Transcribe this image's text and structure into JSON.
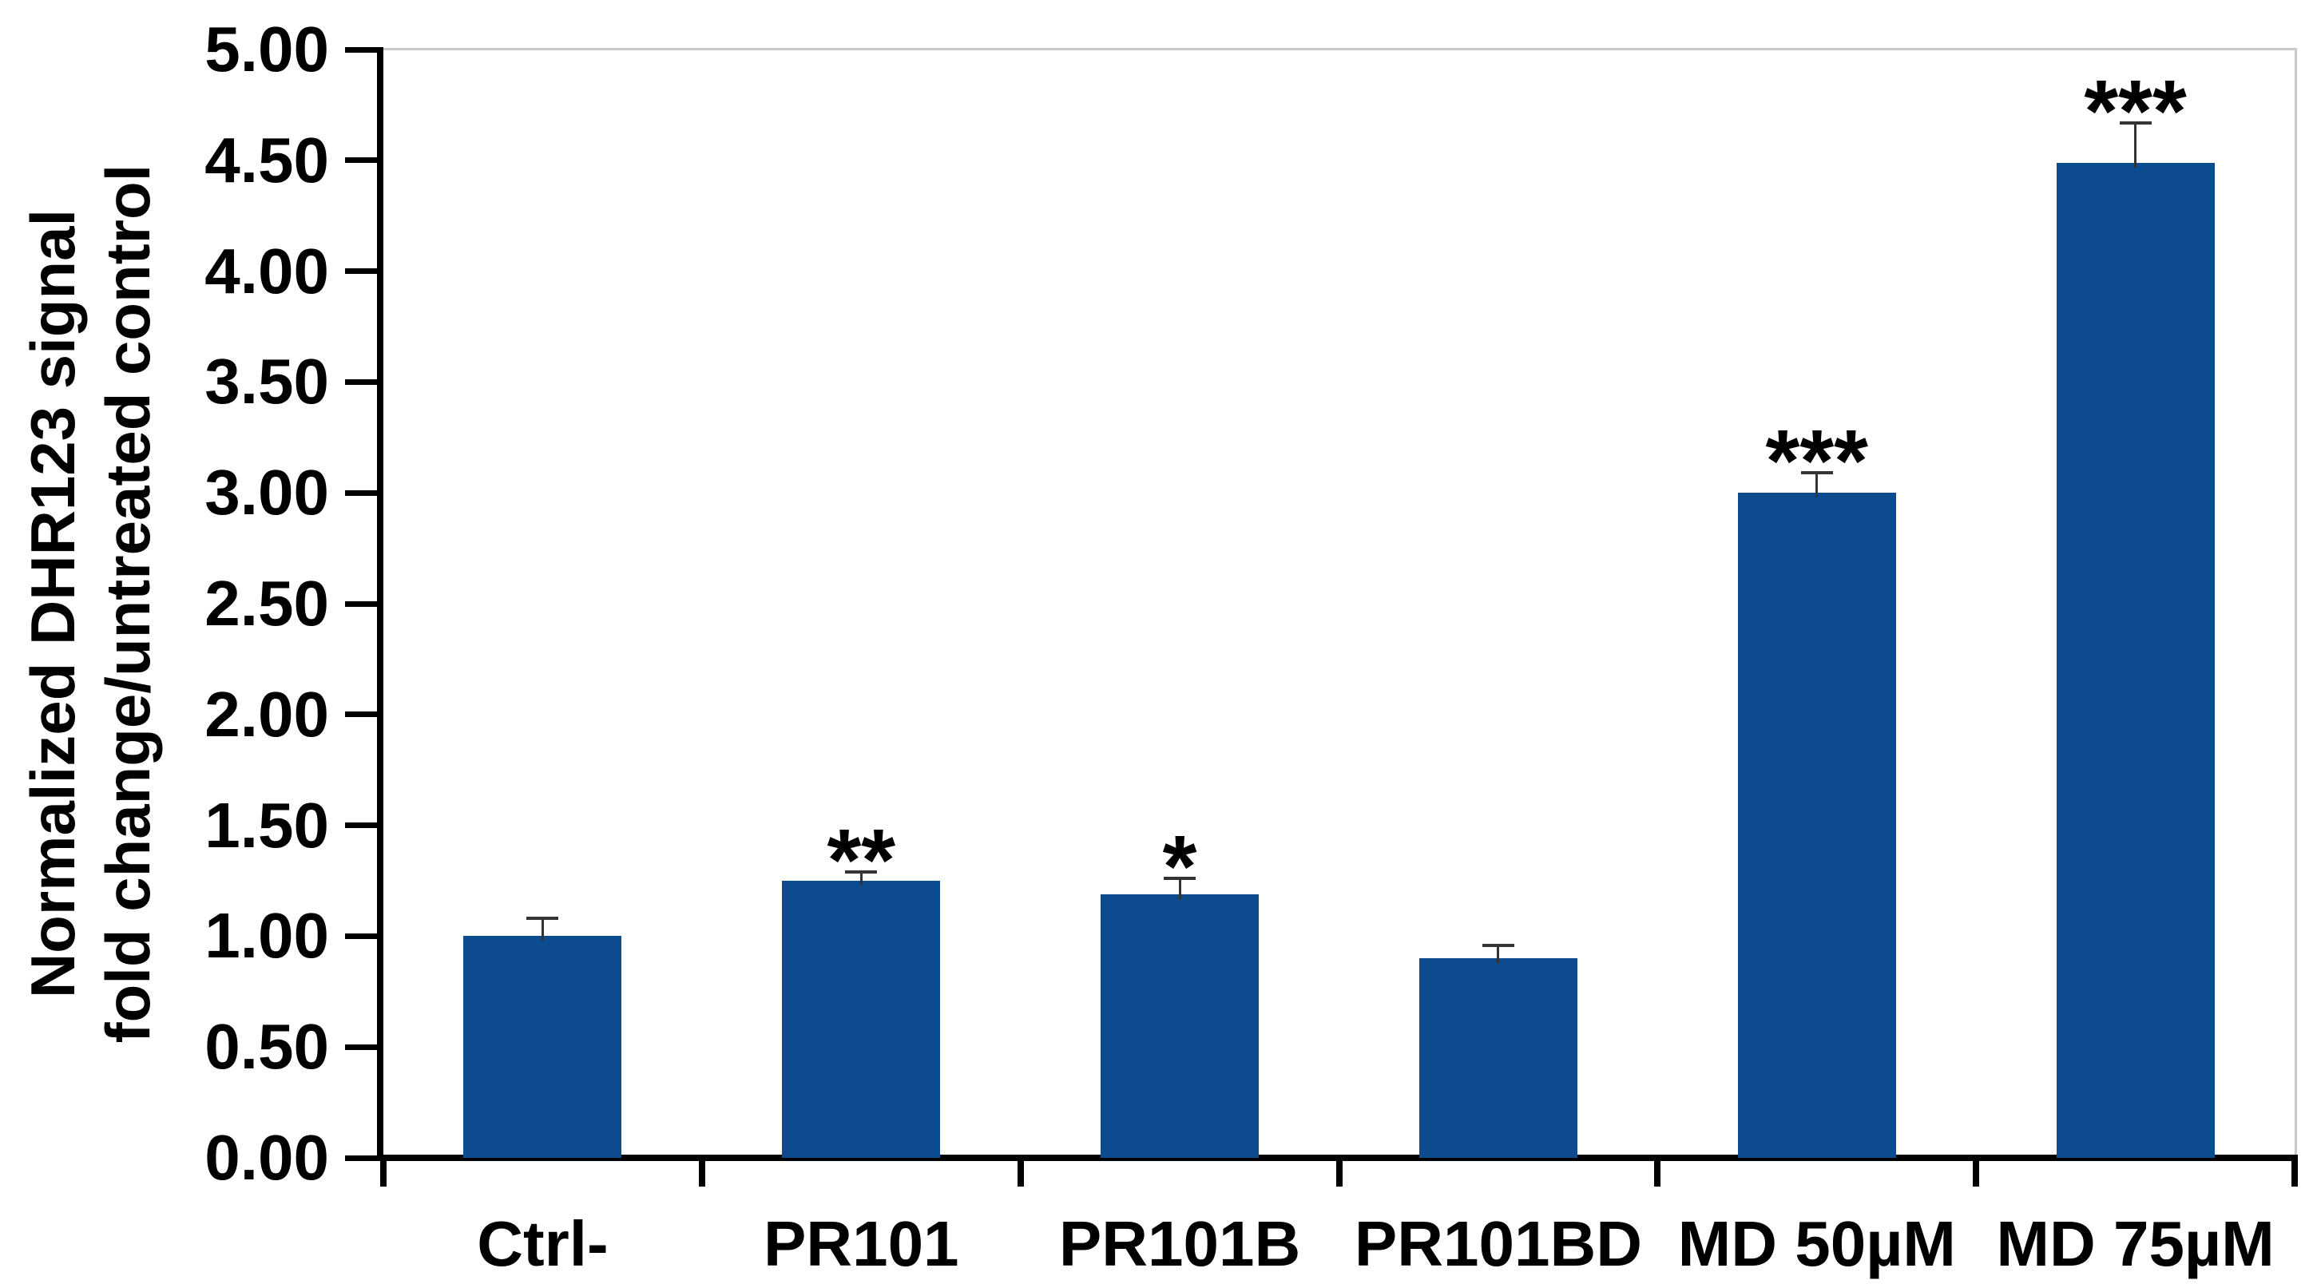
{
  "chart_data": {
    "type": "bar",
    "title": "",
    "categories": [
      "Ctrl-",
      "PR101",
      "PR101B",
      "PR101BD",
      "MD 50µM",
      "MD 75µM"
    ],
    "values": [
      1.0,
      1.25,
      1.19,
      0.9,
      3.0,
      4.49
    ],
    "error_upper": [
      0.08,
      0.04,
      0.07,
      0.06,
      0.09,
      0.18
    ],
    "significance": [
      "",
      "**",
      "*",
      "",
      "***",
      "***"
    ],
    "ylabel_line1": "Normalized DHR123 signal",
    "ylabel_line2": "fold change/untreated control",
    "xlabel": "",
    "ylim": [
      0,
      5
    ],
    "ytick_step": 0.5,
    "ytick_labels": [
      "0.00",
      "0.50",
      "1.00",
      "1.50",
      "2.00",
      "2.50",
      "3.00",
      "3.50",
      "4.00",
      "4.50",
      "5.00"
    ],
    "grid": false,
    "legend": "none",
    "colors": {
      "bar_fill": "#0D4B8F",
      "axis": "#000000",
      "plot_border": "#C9C9C9",
      "error_bar": "#333333",
      "text": "#000000",
      "background": "#FFFFFF"
    }
  }
}
